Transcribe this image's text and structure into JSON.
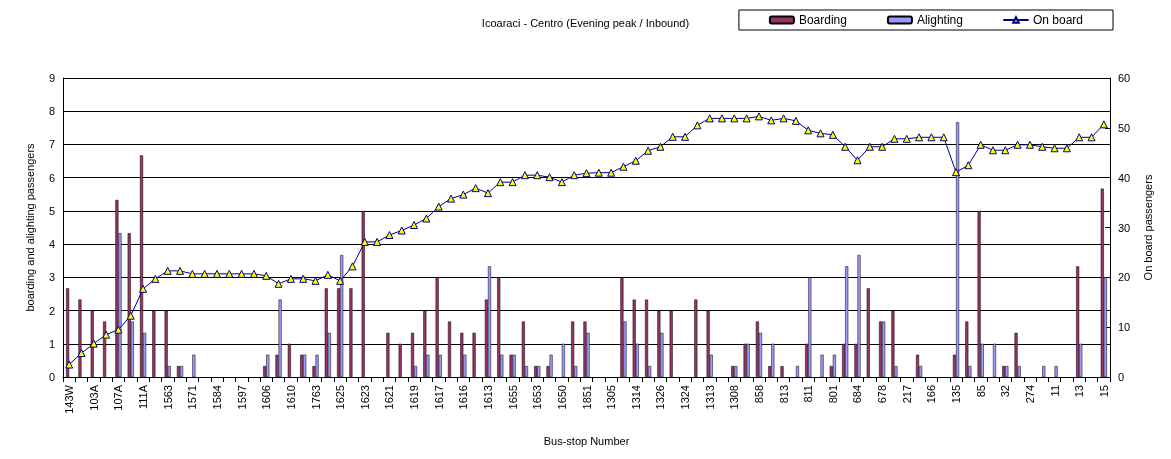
{
  "chart_data": {
    "type": "bar",
    "title": "Icoaraci - Centro (Evening peak / Inbound)",
    "xlabel": "Bus-stop Number",
    "ylabel": "boarding and alighting passengers",
    "y2label": "On board passengers",
    "categories": [
      "143W",
      null,
      "103A",
      null,
      "107A",
      null,
      "111A",
      null,
      "1563",
      null,
      "1571",
      null,
      "1584",
      null,
      "1597",
      null,
      "1606",
      null,
      "1610",
      null,
      "1763",
      null,
      "1625",
      null,
      "1623",
      null,
      "1621",
      null,
      "1619",
      null,
      "1617",
      null,
      "1616",
      null,
      "1613",
      null,
      "1655",
      null,
      "1653",
      null,
      "1650",
      null,
      "1851",
      null,
      "1305",
      null,
      "1314",
      null,
      "1326",
      null,
      "1324",
      null,
      "1313",
      null,
      "1308",
      null,
      "858",
      null,
      "813",
      null,
      "811",
      null,
      "801",
      null,
      "684",
      null,
      "678",
      null,
      "217",
      null,
      "166",
      null,
      "135",
      null,
      "85",
      null,
      "32",
      null,
      "274",
      null,
      "11",
      null,
      "13",
      null,
      "15"
    ],
    "series": [
      {
        "name": "Boarding",
        "color": "#993366",
        "values": [
          2.67,
          2.33,
          2,
          1.67,
          5.33,
          4.33,
          6.67,
          2,
          2,
          0.33,
          0,
          0,
          0,
          0,
          0,
          0,
          0.33,
          0.67,
          1,
          0.67,
          0.33,
          2.67,
          2.67,
          2.67,
          5,
          0,
          1.33,
          1,
          1.33,
          2,
          3,
          1.67,
          1.33,
          1.33,
          2.33,
          3,
          0.67,
          1.67,
          0.33,
          0.33,
          0,
          1.67,
          1.67,
          0,
          0,
          3,
          2.33,
          2.33,
          2,
          2,
          0,
          2.33,
          2,
          0,
          0.33,
          1,
          1.67,
          0.33,
          0.33,
          0,
          1,
          0,
          0.33,
          1,
          1,
          2.67,
          1.67,
          2,
          0,
          0.67,
          0,
          0,
          0.67,
          1.67,
          5,
          0,
          0.33,
          1.33,
          0,
          0,
          0,
          0,
          3.33,
          0,
          5.67
        ]
      },
      {
        "name": "Alighting",
        "color": "#9999ff",
        "values": [
          0,
          0,
          0,
          0,
          4.33,
          1.67,
          1.33,
          0,
          0.33,
          0.33,
          0.67,
          0,
          0,
          0,
          0,
          0,
          0.67,
          2.33,
          0,
          0.67,
          0.67,
          1.33,
          3.67,
          0,
          0,
          0,
          0,
          0,
          0.33,
          0.67,
          0.67,
          0,
          0.67,
          0,
          3.33,
          0.67,
          0.67,
          0.33,
          0.33,
          0.67,
          1,
          0.33,
          1.33,
          0,
          0,
          1.67,
          1,
          0.33,
          1.33,
          0,
          0,
          0,
          0.67,
          0,
          0.33,
          1,
          1.33,
          1,
          0,
          0.33,
          3,
          0.67,
          0.67,
          3.33,
          3.67,
          0,
          1.67,
          0.33,
          0,
          0.33,
          0,
          0,
          7.67,
          0.33,
          1,
          1,
          0.33,
          0.33,
          0,
          0.33,
          0.33,
          0,
          1,
          0,
          3
        ]
      },
      {
        "name": "On board",
        "type": "line",
        "axis": "y2",
        "color": "#000080",
        "values": [
          2.5,
          4.8,
          6.7,
          8.5,
          9.5,
          12.3,
          17.7,
          19.7,
          21.3,
          21.3,
          20.7,
          20.7,
          20.7,
          20.7,
          20.7,
          20.7,
          20.3,
          18.7,
          19.7,
          19.7,
          19.3,
          20.5,
          19.3,
          22.2,
          27.1,
          27.1,
          28.5,
          29.4,
          30.5,
          31.8,
          34.2,
          35.8,
          36.6,
          37.9,
          36.9,
          39.1,
          39.1,
          40.5,
          40.5,
          40.1,
          39.1,
          40.5,
          40.9,
          41,
          41,
          42.2,
          43.4,
          45.4,
          46.2,
          48.2,
          48.2,
          50.5,
          51.9,
          51.9,
          51.9,
          51.9,
          52.3,
          51.5,
          51.9,
          51.4,
          49.5,
          48.9,
          48.6,
          46.2,
          43.5,
          46.2,
          46.2,
          47.8,
          47.8,
          48.1,
          48.1,
          48.1,
          41.1,
          42.5,
          46.6,
          45.5,
          45.5,
          46.6,
          46.6,
          46.2,
          45.9,
          45.9,
          48.1,
          48.1,
          50.7
        ]
      }
    ],
    "ylim": [
      0,
      9
    ],
    "yticks": [
      0,
      1,
      2,
      3,
      4,
      5,
      6,
      7,
      8,
      9
    ],
    "y2lim": [
      0,
      60
    ],
    "y2ticks": [
      0,
      10,
      20,
      30,
      40,
      50,
      60
    ],
    "grid": "y",
    "legend": "top right",
    "marker": "triangle",
    "line_style": "solid"
  }
}
